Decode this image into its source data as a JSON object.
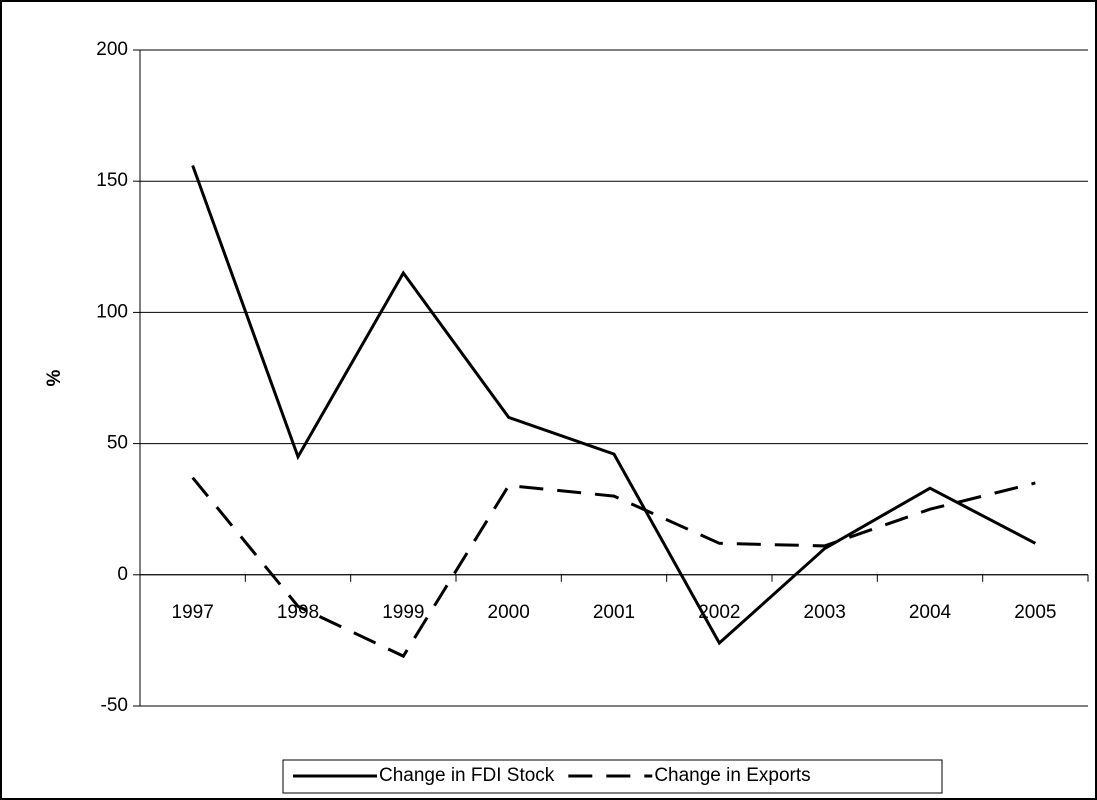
{
  "chart_data": {
    "type": "line",
    "y_label": "%",
    "categories": [
      "1997",
      "1998",
      "1999",
      "2000",
      "2001",
      "2002",
      "2003",
      "2004",
      "2005"
    ],
    "series": [
      {
        "name": "Change in FDI Stock",
        "color": "#000000",
        "dash": "solid",
        "values": [
          156,
          45,
          115,
          60,
          46,
          -26,
          10,
          33,
          12
        ]
      },
      {
        "name": "Change in Exports",
        "color": "#000000",
        "dash": "dashed",
        "values": [
          37,
          -12,
          -31,
          34,
          30,
          12,
          11,
          25,
          35
        ]
      }
    ],
    "ylim": [
      -50,
      200
    ],
    "yticks": [
      -50,
      0,
      50,
      100,
      150,
      200
    ],
    "grid": true,
    "legend": "bottom"
  }
}
